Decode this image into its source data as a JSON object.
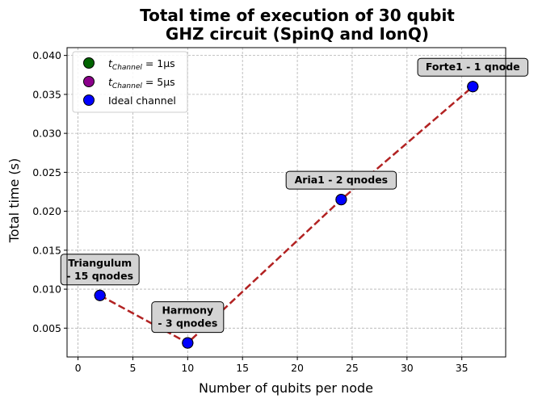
{
  "chart_data": {
    "type": "scatter",
    "title_lines": [
      "Total time of execution of 30 qubit",
      "GHZ circuit (SpinQ and IonQ)"
    ],
    "xlabel": "Number of qubits per node",
    "ylabel": "Total time (s)",
    "xlim": [
      -1,
      39
    ],
    "ylim": [
      0.0013,
      0.041
    ],
    "x_ticks": [
      0,
      5,
      10,
      15,
      20,
      25,
      30,
      35
    ],
    "y_ticks": [
      0.005,
      0.01,
      0.015,
      0.02,
      0.025,
      0.03,
      0.035,
      0.04
    ],
    "y_tick_labels": [
      "0.005",
      "0.010",
      "0.015",
      "0.020",
      "0.025",
      "0.030",
      "0.035",
      "0.040"
    ],
    "grid": true,
    "legend_position": "top-left",
    "series": [
      {
        "legend_main": "t",
        "legend_sub": "Channel",
        "legend_tail": " = 1μs",
        "color": "#006400",
        "x": [
          2,
          10,
          24,
          36
        ],
        "y": [
          0.0092,
          0.0031,
          0.0215,
          0.036
        ]
      },
      {
        "legend_main": "t",
        "legend_sub": "Channel",
        "legend_tail": " = 5μs",
        "color": "#8b008b",
        "x": [
          2,
          10,
          24,
          36
        ],
        "y": [
          0.0092,
          0.0031,
          0.0215,
          0.036
        ]
      },
      {
        "legend_main": "Ideal channel",
        "legend_sub": "",
        "legend_tail": "",
        "color": "#0000ff",
        "x": [
          2,
          10,
          24,
          36
        ],
        "y": [
          0.0092,
          0.0031,
          0.0215,
          0.036
        ]
      }
    ],
    "trend_line": {
      "color": "#b22222",
      "style": "dashed",
      "x": [
        2,
        10,
        24,
        36
      ],
      "y": [
        0.0092,
        0.0031,
        0.0215,
        0.036
      ]
    },
    "annotations": [
      {
        "lines": [
          "Triangulum",
          "- 15 qnodes"
        ],
        "x": 2,
        "y": 0.0092
      },
      {
        "lines": [
          "Harmony",
          "- 3 qnodes"
        ],
        "x": 10,
        "y": 0.0031
      },
      {
        "lines": [
          "Aria1 - 2 qnodes"
        ],
        "x": 24,
        "y": 0.0215
      },
      {
        "lines": [
          "Forte1 - 1 qnode"
        ],
        "x": 36,
        "y": 0.036
      }
    ]
  }
}
